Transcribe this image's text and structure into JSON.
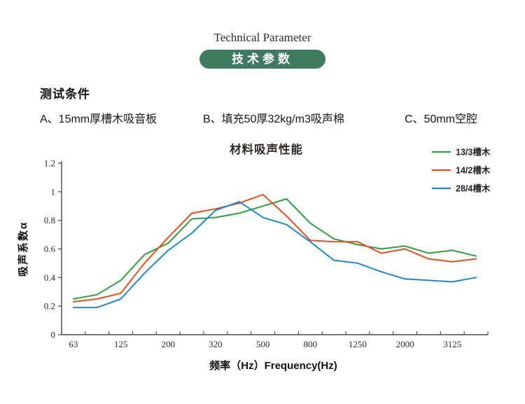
{
  "header": {
    "title_en": "Technical Parameter",
    "badge": "技术参数",
    "badge_color": "#3d7a5f"
  },
  "conditions": {
    "heading": "测试条件",
    "items": [
      {
        "label": "A、15mm厚槽木吸音板"
      },
      {
        "label": "B、填充50厚32kg/m3吸声棉"
      },
      {
        "label": "C、50mm空腔"
      }
    ]
  },
  "chart_data": {
    "type": "line",
    "title": "材料吸声性能",
    "xlabel": "频率（Hz）Frequency(Hz)",
    "ylabel": "吸声系数α",
    "ylim": [
      0,
      1.2
    ],
    "y_ticks": [
      "0",
      "0.2",
      "0.4",
      "0.6",
      "0.8",
      "1",
      "1.2"
    ],
    "grid": false,
    "legend_position": "top-right",
    "categories": [
      63,
      80,
      125,
      160,
      200,
      250,
      320,
      400,
      500,
      630,
      800,
      1000,
      1250,
      1600,
      2000,
      2500,
      3125,
      4000
    ],
    "x_tick_labels": [
      "63",
      "125",
      "200",
      "320",
      "500",
      "800",
      "1250",
      "2000",
      "3125"
    ],
    "axis_color": "#4a4a4a",
    "text_color": "#2e2a26",
    "series": [
      {
        "name": "13/3槽木",
        "color": "#2f9e41",
        "values": [
          0.25,
          0.28,
          0.38,
          0.56,
          0.64,
          0.81,
          0.82,
          0.85,
          0.9,
          0.95,
          0.78,
          0.67,
          0.63,
          0.6,
          0.62,
          0.57,
          0.59,
          0.55
        ]
      },
      {
        "name": "14/2槽木",
        "color": "#ea4e1d",
        "values": [
          0.23,
          0.25,
          0.29,
          0.5,
          0.68,
          0.85,
          0.88,
          0.92,
          0.98,
          0.83,
          0.66,
          0.65,
          0.65,
          0.57,
          0.6,
          0.53,
          0.51,
          0.53
        ]
      },
      {
        "name": "28/4槽木",
        "color": "#1f87d0",
        "values": [
          0.19,
          0.19,
          0.25,
          0.43,
          0.59,
          0.71,
          0.87,
          0.93,
          0.82,
          0.77,
          0.65,
          0.52,
          0.5,
          0.44,
          0.39,
          0.38,
          0.37,
          0.4
        ]
      }
    ]
  }
}
